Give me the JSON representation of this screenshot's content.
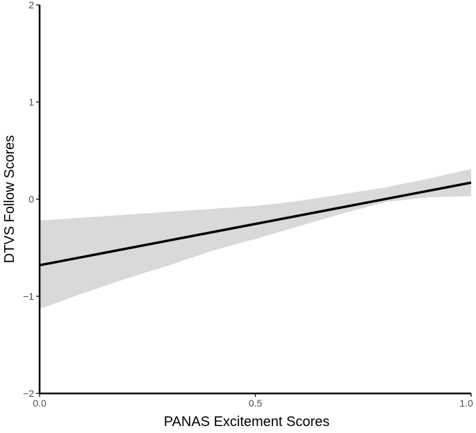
{
  "chart_data": {
    "type": "line",
    "title": "",
    "xlabel": "PANAS Excitement Scores",
    "ylabel": "DTVS Follow Scores",
    "xlim": [
      0,
      1
    ],
    "ylim": [
      -2,
      2
    ],
    "x_ticks": [
      0.0,
      0.5,
      1.0
    ],
    "x_tick_labels": [
      "0.0",
      "0.5",
      "1.0"
    ],
    "y_ticks": [
      -2,
      -1,
      0,
      1,
      2
    ],
    "y_tick_labels": [
      "−2",
      "−1",
      "0",
      "1",
      "2"
    ],
    "grid": false,
    "legend": "none",
    "series": [
      {
        "name": "fit",
        "x": [
          0.0,
          1.0
        ],
        "y": [
          -0.68,
          0.17
        ]
      }
    ],
    "confidence_band": {
      "x": [
        0.0,
        0.1,
        0.2,
        0.3,
        0.4,
        0.5,
        0.6,
        0.7,
        0.8,
        0.9,
        1.0
      ],
      "lower": [
        -1.13,
        -0.97,
        -0.82,
        -0.68,
        -0.53,
        -0.41,
        -0.28,
        -0.15,
        -0.03,
        0.02,
        0.03
      ],
      "upper": [
        -0.22,
        -0.19,
        -0.16,
        -0.13,
        -0.1,
        -0.07,
        -0.02,
        0.05,
        0.12,
        0.21,
        0.31
      ]
    },
    "colors": {
      "line": "#000000",
      "band": "#d9d9d9",
      "axis": "#000000",
      "tick_label": "#4d4d4d",
      "axis_title": "#000000"
    }
  }
}
